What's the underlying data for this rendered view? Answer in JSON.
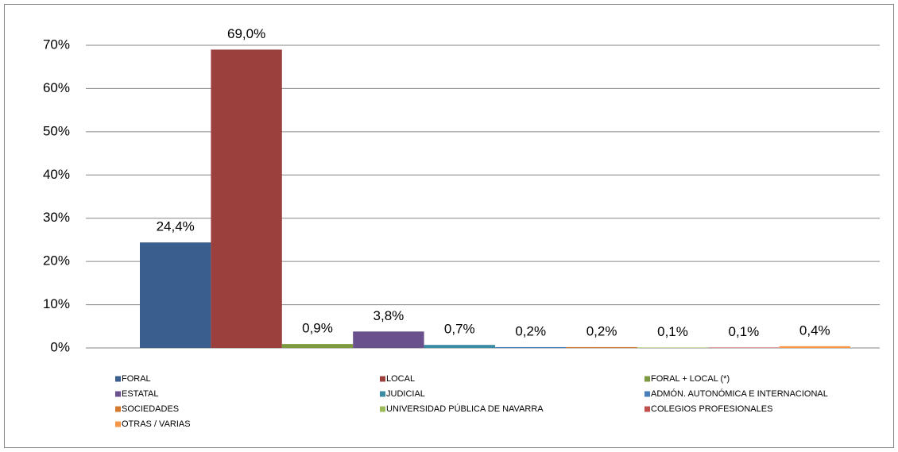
{
  "chart_data": {
    "type": "bar",
    "ylim": [
      0,
      70
    ],
    "yticks": [
      {
        "value": 0,
        "label": "0%"
      },
      {
        "value": 10,
        "label": "10%"
      },
      {
        "value": 20,
        "label": "20%"
      },
      {
        "value": 30,
        "label": "30%"
      },
      {
        "value": 40,
        "label": "40%"
      },
      {
        "value": 50,
        "label": "50%"
      },
      {
        "value": 60,
        "label": "60%"
      },
      {
        "value": 70,
        "label": "70%"
      }
    ],
    "grid": true,
    "legend": "bottom",
    "series": [
      {
        "name": "FORAL",
        "color": "#3a5f8e",
        "values": [
          24.4
        ],
        "value_labels": [
          "24,4%"
        ]
      },
      {
        "name": "LOCAL",
        "color": "#9c403e",
        "values": [
          69.0
        ],
        "value_labels": [
          "69,0%"
        ]
      },
      {
        "name": "FORAL + LOCAL (*)",
        "color": "#7d9a40",
        "values": [
          0.9
        ],
        "value_labels": [
          "0,9%"
        ]
      },
      {
        "name": "ESTATAL",
        "color": "#6a508c",
        "values": [
          3.8
        ],
        "value_labels": [
          "3,8%"
        ]
      },
      {
        "name": "JUDICIAL",
        "color": "#3a8ba4",
        "values": [
          0.7
        ],
        "value_labels": [
          "0,7%"
        ]
      },
      {
        "name": "ADMÓN. AUTONÓMICA E INTERNACIONAL",
        "color": "#4a7ebb",
        "values": [
          0.2
        ],
        "value_labels": [
          "0,2%"
        ]
      },
      {
        "name": "SOCIEDADES",
        "color": "#d6782e",
        "values": [
          0.2
        ],
        "value_labels": [
          "0,2%"
        ]
      },
      {
        "name": "UNIVERSIDAD PÚBLICA DE NAVARRA",
        "color": "#9bbb59",
        "values": [
          0.1
        ],
        "value_labels": [
          "0,1%"
        ]
      },
      {
        "name": "COLEGIOS PROFESIONALES",
        "color": "#c0504d",
        "values": [
          0.1
        ],
        "value_labels": [
          "0,1%"
        ]
      },
      {
        "name": "OTRAS / VARIAS",
        "color": "#f79646",
        "values": [
          0.4
        ],
        "value_labels": [
          "0,4%"
        ]
      }
    ]
  }
}
